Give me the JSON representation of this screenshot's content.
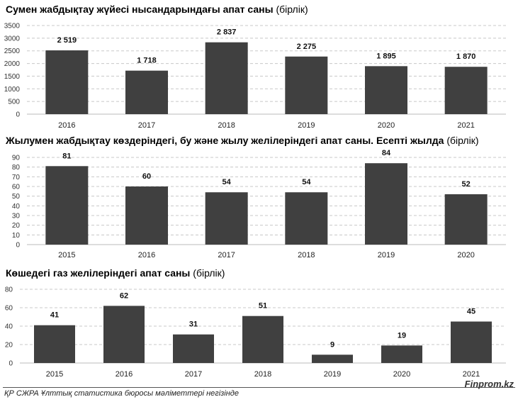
{
  "chart_data": [
    {
      "type": "bar",
      "title": "Сумен жабдықтау жүйесі нысандарындағы апат саны",
      "title_unit": "(бірлік)",
      "categories": [
        "2016",
        "2017",
        "2018",
        "2019",
        "2020",
        "2021"
      ],
      "values": [
        2519,
        1718,
        2837,
        2275,
        1895,
        1870
      ],
      "data_labels": [
        "2 519",
        "1 718",
        "2 837",
        "2 275",
        "1 895",
        "1 870"
      ],
      "yticks": [
        "0",
        "500",
        "1000",
        "1500",
        "2000",
        "2500",
        "3000",
        "3500"
      ],
      "ylim": [
        0,
        3500
      ],
      "grid": true,
      "bar_color": "#404040"
    },
    {
      "type": "bar",
      "title": "Жылумен жабдықтау көздеріндегі, бу және жылу желілеріндегі апат саны. Есепті жылда",
      "title_unit": "(бірлік)",
      "categories": [
        "2015",
        "2016",
        "2017",
        "2018",
        "2019",
        "2020"
      ],
      "values": [
        81,
        60,
        54,
        54,
        84,
        52
      ],
      "data_labels": [
        "81",
        "60",
        "54",
        "54",
        "84",
        "52"
      ],
      "yticks": [
        "0",
        "10",
        "20",
        "30",
        "40",
        "50",
        "60",
        "70",
        "80",
        "90"
      ],
      "ylim": [
        0,
        90
      ],
      "grid": true,
      "bar_color": "#404040"
    },
    {
      "type": "bar",
      "title": "Көшедегі газ желілеріндегі апат саны",
      "title_unit": "(бірлік)",
      "categories": [
        "2015",
        "2016",
        "2017",
        "2018",
        "2019",
        "2020",
        "2021"
      ],
      "values": [
        41,
        62,
        31,
        51,
        9,
        19,
        45
      ],
      "data_labels": [
        "41",
        "62",
        "31",
        "51",
        "9",
        "19",
        "45"
      ],
      "yticks": [
        "0",
        "20",
        "40",
        "60",
        "80"
      ],
      "ylim": [
        0,
        80
      ],
      "grid": true,
      "bar_color": "#404040"
    }
  ],
  "footer": {
    "source": "ҚР СЖРА Ұлттық статистика бюросы мәліметтері негізінде",
    "brand": "Finprom.kz"
  }
}
